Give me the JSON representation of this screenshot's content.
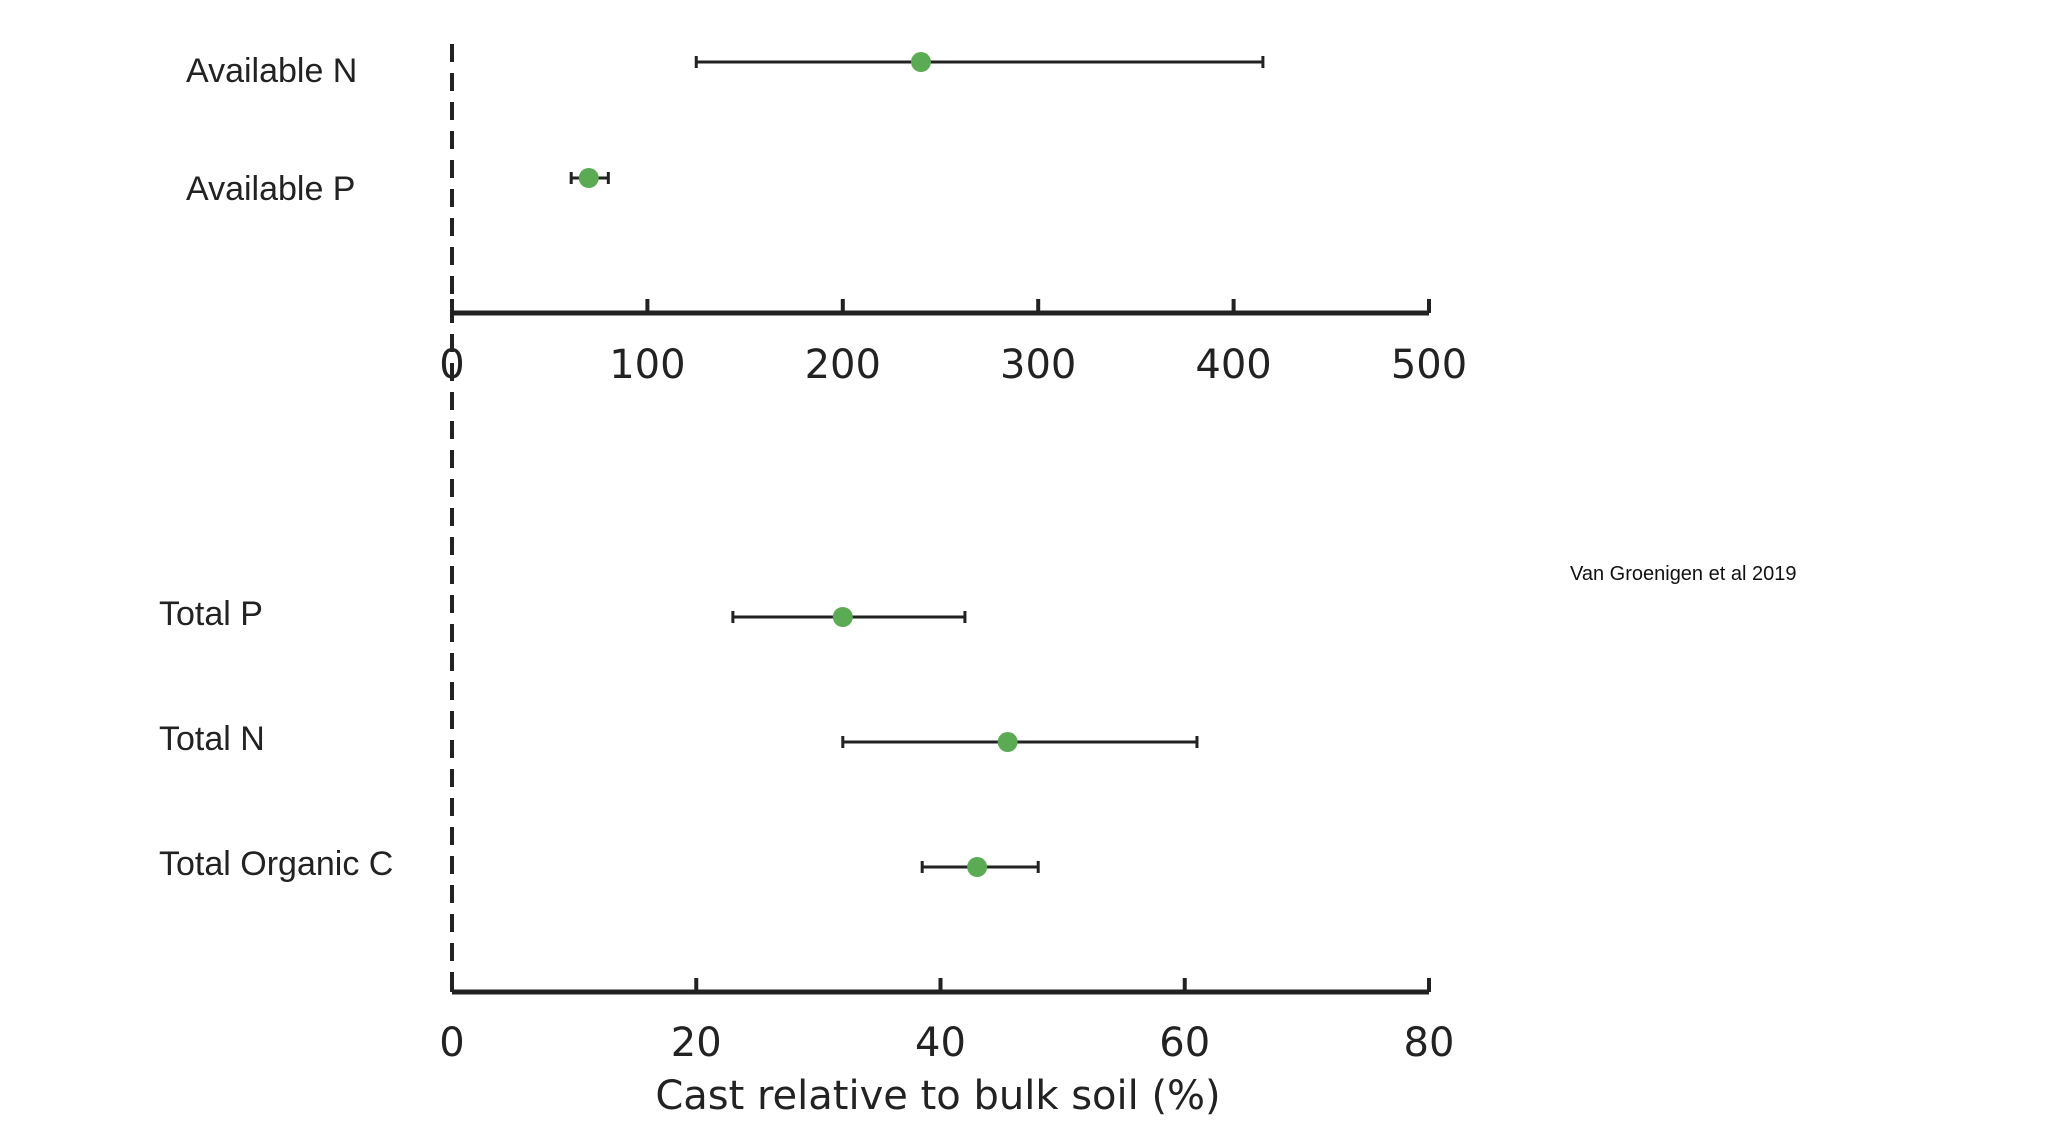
{
  "chart_data": [
    {
      "type": "scatter",
      "title": "",
      "xlabel": "",
      "ylabel": "",
      "xlim": [
        0,
        500
      ],
      "xticks": [
        0,
        100,
        200,
        300,
        400,
        500
      ],
      "tick_labels": [
        "0",
        "100",
        "200",
        "300",
        "400",
        "500"
      ],
      "grid": false,
      "points": [
        {
          "label": "Available N",
          "value": 240,
          "lower": 125,
          "upper": 415
        },
        {
          "label": "Available P",
          "value": 70,
          "lower": 61,
          "upper": 80
        }
      ]
    },
    {
      "type": "scatter",
      "title": "",
      "xlabel": "Cast relative to bulk soil (%)",
      "ylabel": "",
      "xlim": [
        0,
        80
      ],
      "xticks": [
        0,
        20,
        40,
        60,
        80
      ],
      "tick_labels": [
        "0",
        "20",
        "40",
        "60",
        "80"
      ],
      "grid": false,
      "points": [
        {
          "label": "Total P",
          "value": 32,
          "lower": 23,
          "upper": 42
        },
        {
          "label": "Total N",
          "value": 45.5,
          "lower": 32,
          "upper": 61
        },
        {
          "label": "Total Organic C",
          "value": 43,
          "lower": 38.5,
          "upper": 48
        }
      ]
    }
  ],
  "colors": {
    "marker": "#5aab54",
    "line": "#222222"
  },
  "credit": "Van Groenigen  et al 2019"
}
